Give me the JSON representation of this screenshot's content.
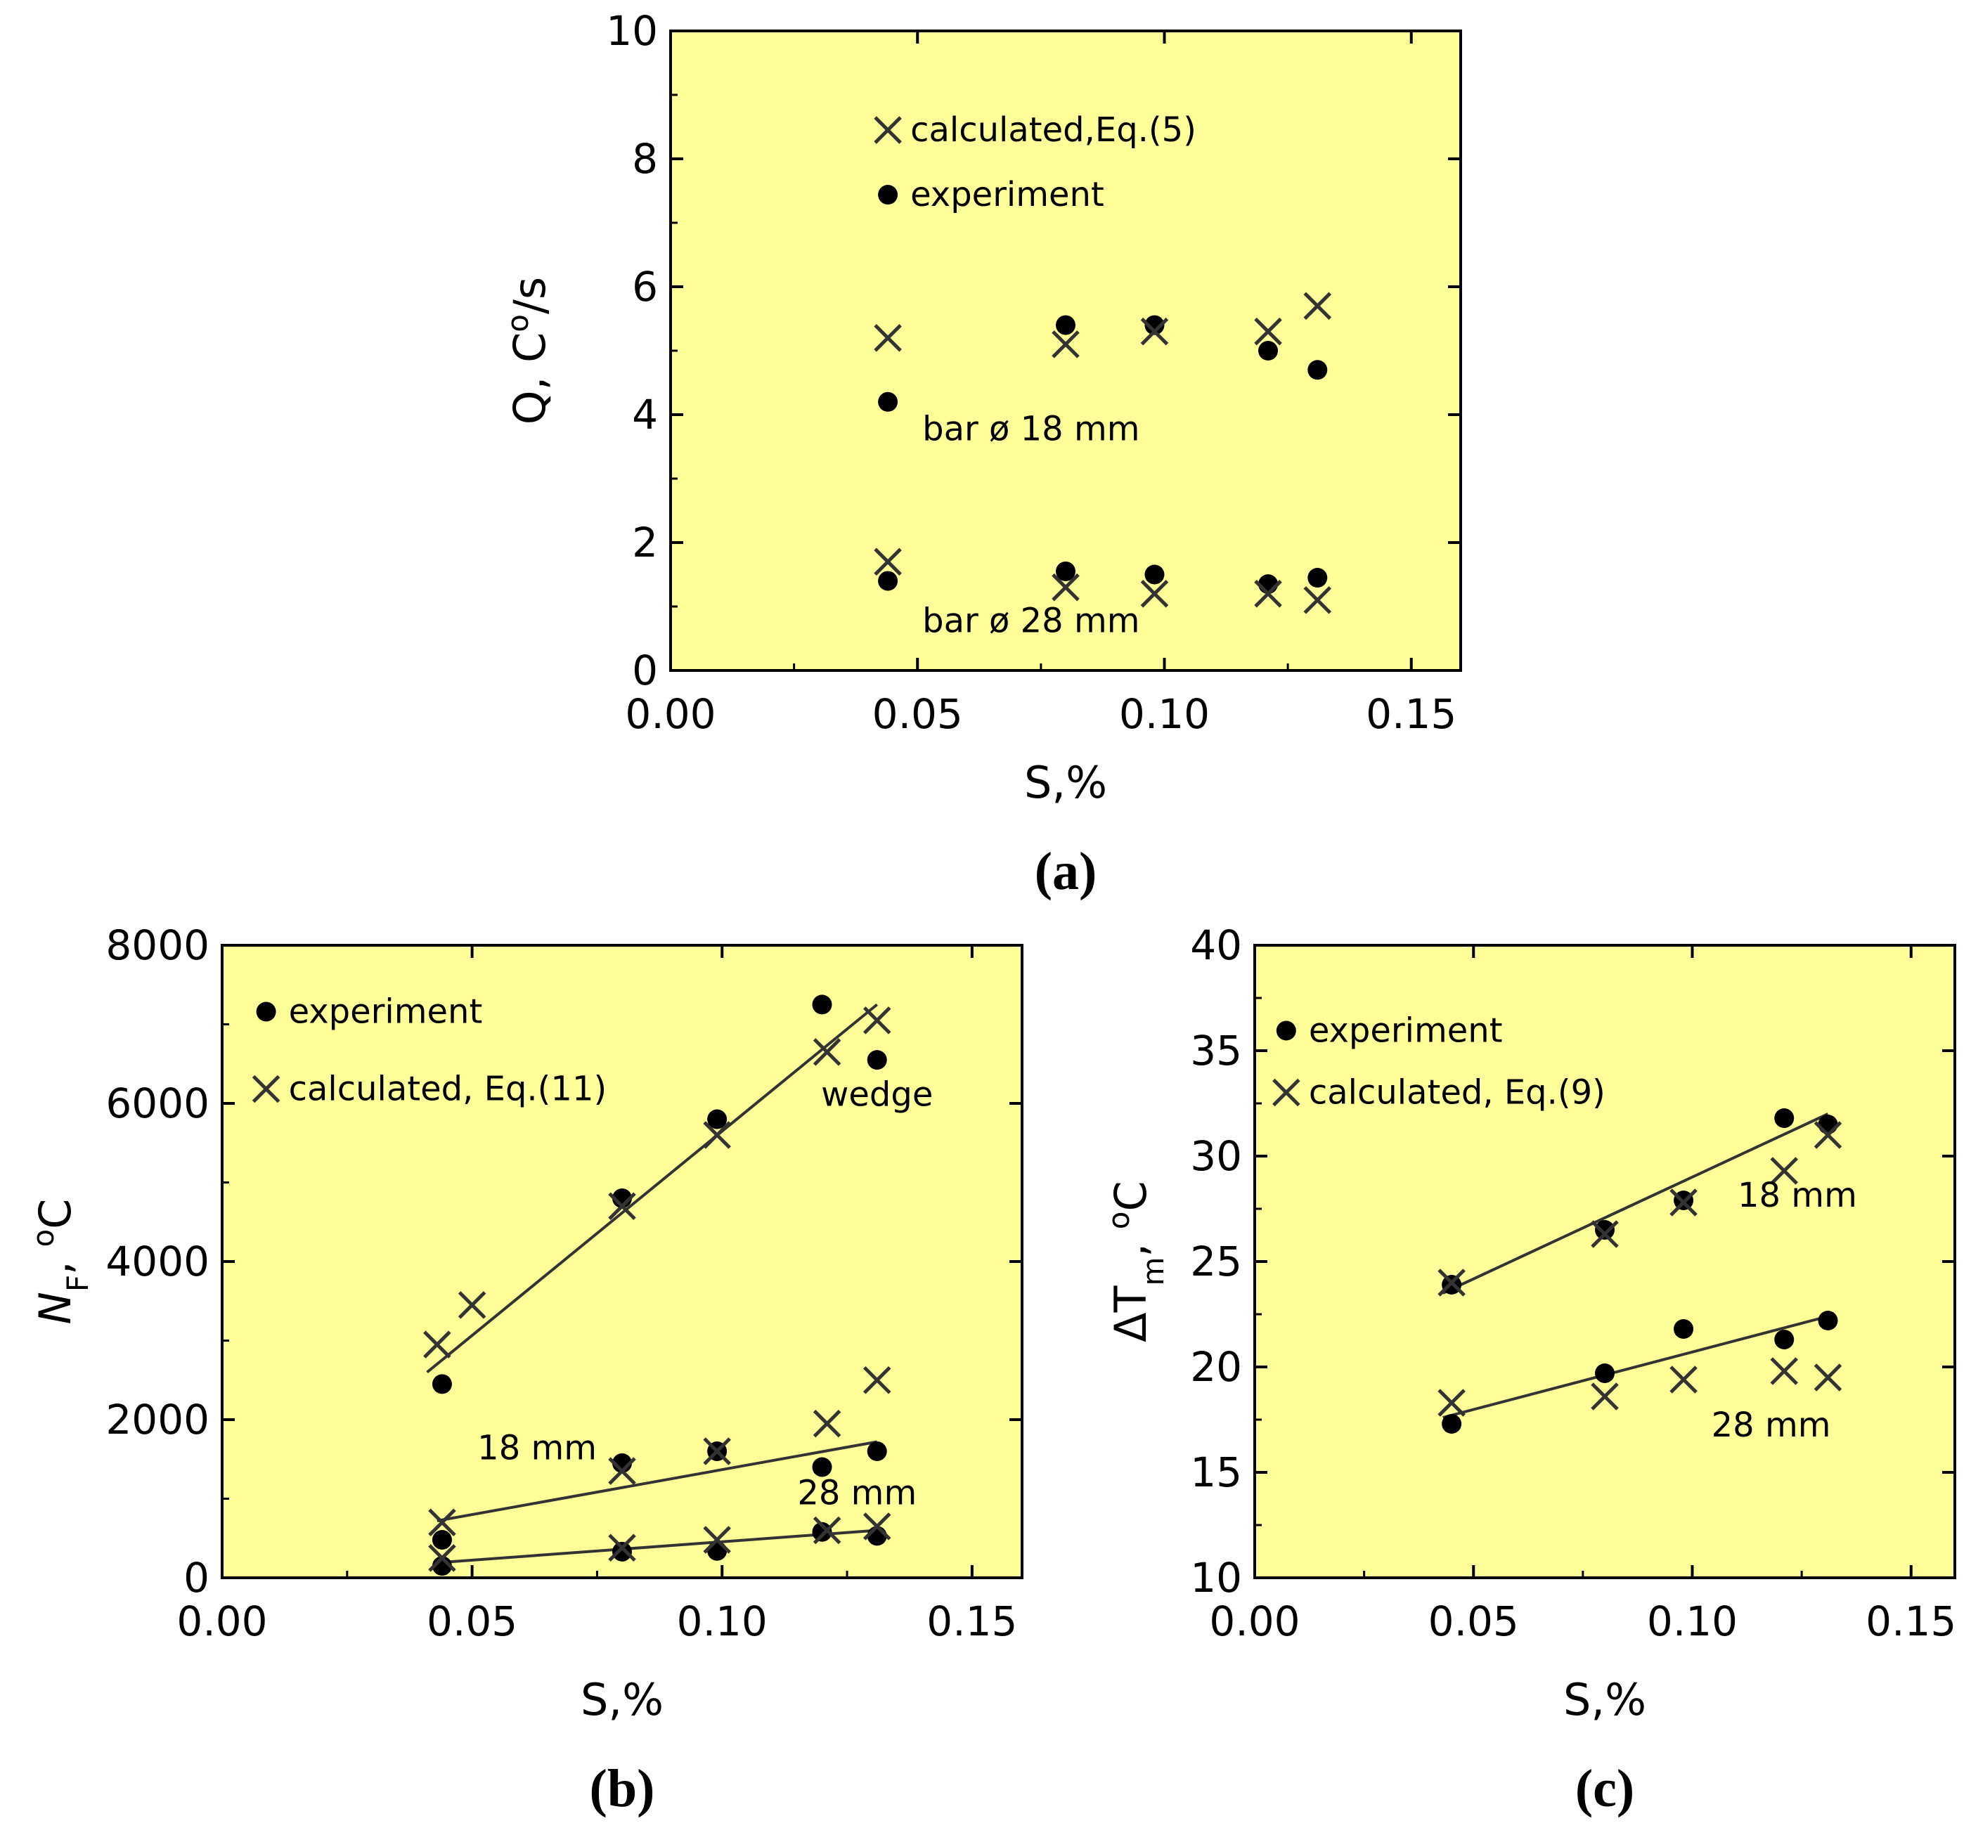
{
  "colors": {
    "plot_background": "#FFFF99",
    "marker": "#000000",
    "cross": "#333333",
    "axis": "#000000"
  },
  "chart_data": [
    {
      "panel": "(a)",
      "type": "scatter",
      "xlabel": "S,%",
      "ylabel": "Q, C°/s",
      "xlim": [
        0.0,
        0.16
      ],
      "ylim": [
        0,
        10
      ],
      "xticks": [
        "0.00",
        "0.05",
        "0.10",
        "0.15"
      ],
      "xtick_values": [
        0.0,
        0.05,
        0.1,
        0.15
      ],
      "yticks": [
        "0",
        "2",
        "4",
        "6",
        "8",
        "10"
      ],
      "ytick_values": [
        0,
        2,
        4,
        6,
        8,
        10
      ],
      "legend": [
        {
          "label": "calculated,Eq.(5)",
          "marker": "x"
        },
        {
          "label": "experiment",
          "marker": "dot"
        }
      ],
      "legend_position": "top-center",
      "annotations": [
        {
          "text": "bar ø 18 mm",
          "x": 0.073,
          "y": 3.6
        },
        {
          "text": "bar ø 28 mm",
          "x": 0.073,
          "y": 0.6
        }
      ],
      "series": [
        {
          "name": "experiment",
          "marker": "dot",
          "x": [
            0.044,
            0.08,
            0.098,
            0.121,
            0.131
          ],
          "y": [
            4.2,
            5.4,
            5.4,
            5.0,
            4.7
          ]
        },
        {
          "name": "calculated,Eq.(5)",
          "marker": "x",
          "x": [
            0.044,
            0.08,
            0.098,
            0.121,
            0.131
          ],
          "y": [
            5.2,
            5.1,
            5.3,
            5.3,
            5.7
          ]
        },
        {
          "name": "experiment",
          "marker": "dot",
          "x": [
            0.044,
            0.08,
            0.098,
            0.121,
            0.131
          ],
          "y": [
            1.4,
            1.55,
            1.5,
            1.35,
            1.45
          ]
        },
        {
          "name": "calculated,Eq.(5)",
          "marker": "x",
          "x": [
            0.044,
            0.08,
            0.098,
            0.121,
            0.131
          ],
          "y": [
            1.7,
            1.3,
            1.2,
            1.2,
            1.1
          ]
        }
      ],
      "lines": []
    },
    {
      "panel": "(b)",
      "type": "scatter",
      "xlabel": "S,%",
      "ylabel": "N_F, °C",
      "xlim": [
        0.0,
        0.16
      ],
      "ylim": [
        0,
        8000
      ],
      "xticks": [
        "0.00",
        "0.05",
        "0.10",
        "0.15"
      ],
      "xtick_values": [
        0.0,
        0.05,
        0.1,
        0.15
      ],
      "yticks": [
        "0",
        "2000",
        "4000",
        "6000",
        "8000"
      ],
      "ytick_values": [
        0,
        2000,
        4000,
        6000,
        8000
      ],
      "legend": [
        {
          "label": "experiment",
          "marker": "dot"
        },
        {
          "label": "calculated, Eq.(11)",
          "marker": "x"
        }
      ],
      "legend_position": "top-left",
      "annotations": [
        {
          "text": "wedge",
          "x": 0.131,
          "y": 5970
        },
        {
          "text": "18 mm",
          "x": 0.063,
          "y": 1500
        },
        {
          "text": "28 mm",
          "x": 0.127,
          "y": 930
        }
      ],
      "series": [
        {
          "name": "experiment",
          "marker": "dot",
          "x": [
            0.044,
            0.08,
            0.099,
            0.12,
            0.131
          ],
          "y": [
            2450,
            4800,
            5800,
            7250,
            6550
          ]
        },
        {
          "name": "calculated, Eq.(11)",
          "marker": "x",
          "x": [
            0.043,
            0.05,
            0.08,
            0.099,
            0.121,
            0.131
          ],
          "y": [
            2950,
            3450,
            4700,
            5600,
            6650,
            7050
          ]
        },
        {
          "name": "experiment",
          "marker": "dot",
          "x": [
            0.044,
            0.08,
            0.099,
            0.12,
            0.131
          ],
          "y": [
            480,
            1450,
            1600,
            1400,
            1600
          ]
        },
        {
          "name": "calculated, Eq.(11)",
          "marker": "x",
          "x": [
            0.044,
            0.08,
            0.099,
            0.121,
            0.131
          ],
          "y": [
            700,
            1350,
            1600,
            1950,
            2500
          ]
        },
        {
          "name": "experiment",
          "marker": "dot",
          "x": [
            0.044,
            0.08,
            0.099,
            0.12,
            0.131
          ],
          "y": [
            150,
            330,
            340,
            580,
            530
          ]
        },
        {
          "name": "calculated, Eq.(11)",
          "marker": "x",
          "x": [
            0.044,
            0.08,
            0.099,
            0.121,
            0.131
          ],
          "y": [
            250,
            380,
            480,
            600,
            650
          ]
        }
      ],
      "lines": [
        {
          "label": "wedge fit",
          "x": [
            0.041,
            0.131
          ],
          "y": [
            2600,
            7250
          ]
        },
        {
          "label": "18 mm fit",
          "x": [
            0.043,
            0.131
          ],
          "y": [
            720,
            1720
          ]
        },
        {
          "label": "28 mm fit",
          "x": [
            0.043,
            0.131
          ],
          "y": [
            190,
            600
          ]
        }
      ]
    },
    {
      "panel": "(c)",
      "type": "scatter",
      "xlabel": "S,%",
      "ylabel": "ΔT_m, °C",
      "xlim": [
        0.0,
        0.16
      ],
      "ylim": [
        10,
        40
      ],
      "xticks": [
        "0.00",
        "0.05",
        "0.10",
        "0.15"
      ],
      "xtick_values": [
        0.0,
        0.05,
        0.1,
        0.15
      ],
      "yticks": [
        "10",
        "15",
        "20",
        "25",
        "30",
        "35",
        "40"
      ],
      "ytick_values": [
        10,
        15,
        20,
        25,
        30,
        35,
        40
      ],
      "legend": [
        {
          "label": "experiment",
          "marker": "dot"
        },
        {
          "label": "calculated, Eq.(9)",
          "marker": "x"
        }
      ],
      "legend_position": "top-left",
      "annotations": [
        {
          "text": "18 mm",
          "x": 0.124,
          "y": 27.6
        },
        {
          "text": "28 mm",
          "x": 0.118,
          "y": 16.7
        }
      ],
      "series": [
        {
          "name": "experiment",
          "marker": "dot",
          "x": [
            0.045,
            0.08,
            0.098,
            0.121,
            0.131
          ],
          "y": [
            23.9,
            26.5,
            27.9,
            31.8,
            31.5
          ]
        },
        {
          "name": "calculated, Eq.(9)",
          "marker": "x",
          "x": [
            0.045,
            0.08,
            0.098,
            0.121,
            0.131
          ],
          "y": [
            24.0,
            26.3,
            27.8,
            29.3,
            31.0
          ]
        },
        {
          "name": "experiment",
          "marker": "dot",
          "x": [
            0.045,
            0.08,
            0.098,
            0.121,
            0.131
          ],
          "y": [
            17.3,
            19.7,
            21.8,
            21.3,
            22.2
          ]
        },
        {
          "name": "calculated, Eq.(9)",
          "marker": "x",
          "x": [
            0.045,
            0.08,
            0.098,
            0.121,
            0.131
          ],
          "y": [
            18.3,
            18.6,
            19.4,
            19.8,
            19.5
          ]
        }
      ],
      "lines": [
        {
          "label": "18 mm fit",
          "x": [
            0.043,
            0.131
          ],
          "y": [
            23.5,
            32.0
          ]
        },
        {
          "label": "28 mm fit",
          "x": [
            0.043,
            0.131
          ],
          "y": [
            17.6,
            22.4
          ]
        }
      ]
    }
  ]
}
